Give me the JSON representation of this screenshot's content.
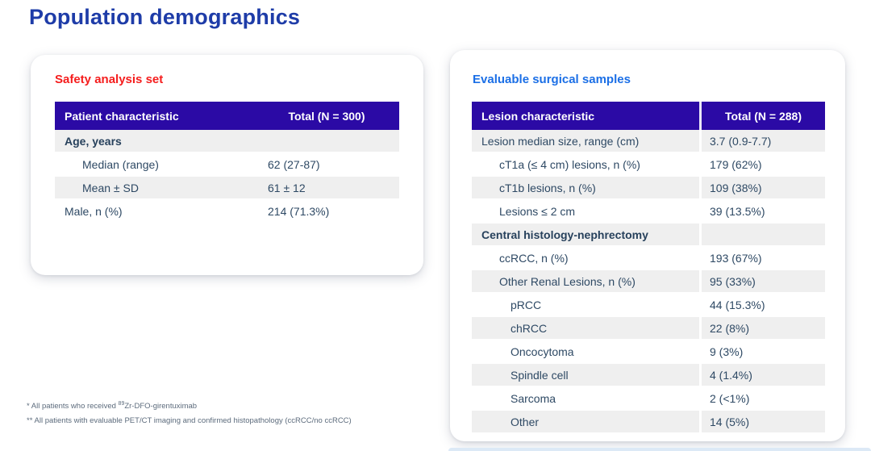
{
  "page": {
    "title": "Population demographics"
  },
  "left_panel": {
    "subtitle": "Safety analysis set",
    "table": {
      "headers": [
        "Patient characteristic",
        "Total (N = 300)"
      ],
      "rows": [
        {
          "label": "Age, years",
          "value": "",
          "indent": 0,
          "bold": true
        },
        {
          "label": "Median (range)",
          "value": "62 (27-87)",
          "indent": 1,
          "bold": false
        },
        {
          "label": "Mean ± SD",
          "value": "61 ± 12",
          "indent": 1,
          "bold": false
        },
        {
          "label": "Male, n (%)",
          "value": "214 (71.3%)",
          "indent": 0,
          "bold": false
        }
      ]
    }
  },
  "right_panel": {
    "subtitle": "Evaluable surgical samples",
    "table": {
      "headers": [
        "Lesion characteristic",
        "Total (N = 288)"
      ],
      "rows": [
        {
          "label": "Lesion median size, range (cm)",
          "value": "3.7 (0.9-7.7)",
          "indent": 0,
          "bold": false
        },
        {
          "label": "cT1a (≤ 4 cm) lesions, n (%)",
          "value": "179 (62%)",
          "indent": 1,
          "bold": false
        },
        {
          "label": "cT1b lesions, n (%)",
          "value": "109 (38%)",
          "indent": 1,
          "bold": false
        },
        {
          "label": "Lesions ≤ 2 cm",
          "value": "39 (13.5%)",
          "indent": 1,
          "bold": false
        },
        {
          "label": "Central histology-nephrectomy",
          "value": "",
          "indent": 0,
          "bold": true
        },
        {
          "label": "ccRCC, n (%)",
          "value": "193 (67%)",
          "indent": 1,
          "bold": false
        },
        {
          "label": "Other Renal Lesions, n (%)",
          "value": "95 (33%)",
          "indent": 1,
          "bold": false
        },
        {
          "label": "pRCC",
          "value": "44 (15.3%)",
          "indent": 2,
          "bold": false
        },
        {
          "label": "chRCC",
          "value": "22 (8%)",
          "indent": 2,
          "bold": false
        },
        {
          "label": "Oncocytoma",
          "value": "9 (3%)",
          "indent": 2,
          "bold": false
        },
        {
          "label": "Spindle cell",
          "value": "4 (1.4%)",
          "indent": 2,
          "bold": false
        },
        {
          "label": "Sarcoma",
          "value": "2 (<1%)",
          "indent": 2,
          "bold": false
        },
        {
          "label": "Other",
          "value": "14 (5%)",
          "indent": 2,
          "bold": false
        }
      ]
    }
  },
  "footnotes": {
    "line1_pre": "* All patients who received ",
    "line1_sup": "89",
    "line1_post": "Zr-DFO-girentuximab",
    "line2": "** All patients with evaluable PET/CT imaging and confirmed histopathology (ccRCC/no ccRCC)"
  },
  "colors": {
    "title": "#1e3ca8",
    "subtitle_left": "#f51d1d",
    "subtitle_right": "#1b6fe6",
    "table_header_bg": "#2b0aa5",
    "table_header_text": "#ffffff",
    "row_alt_bg": "#efefef",
    "body_text": "#2e4964",
    "footnote_text": "#5c6b7c",
    "bottom_strip": "#dce9f6"
  }
}
